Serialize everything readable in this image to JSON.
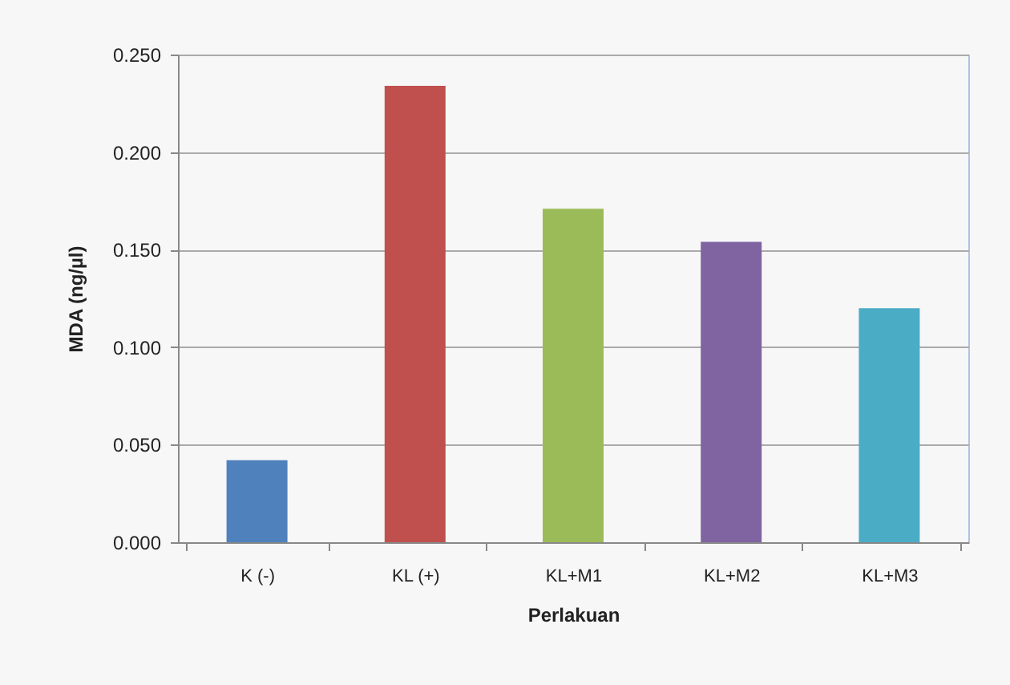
{
  "chart_data": {
    "type": "bar",
    "xlabel": "Perlakuan",
    "ylabel": "MDA (ng/µl)",
    "categories": [
      "K (-)",
      "KL (+)",
      "KL+M1",
      "KL+M2",
      "KL+M3"
    ],
    "values": [
      0.042,
      0.234,
      0.171,
      0.154,
      0.12
    ],
    "colors": [
      "#4f81bd",
      "#c0504d",
      "#9bbb59",
      "#8064a2",
      "#4bacc6"
    ],
    "ylim": [
      0,
      0.25
    ],
    "yticks": [
      {
        "value": 0,
        "label": "0.000"
      },
      {
        "value": 0.05,
        "label": "0.050"
      },
      {
        "value": 0.1,
        "label": "0.100"
      },
      {
        "value": 0.15,
        "label": "0.150"
      },
      {
        "value": 0.2,
        "label": "0.200"
      },
      {
        "value": 0.25,
        "label": "0.250"
      }
    ],
    "grid": "y"
  }
}
